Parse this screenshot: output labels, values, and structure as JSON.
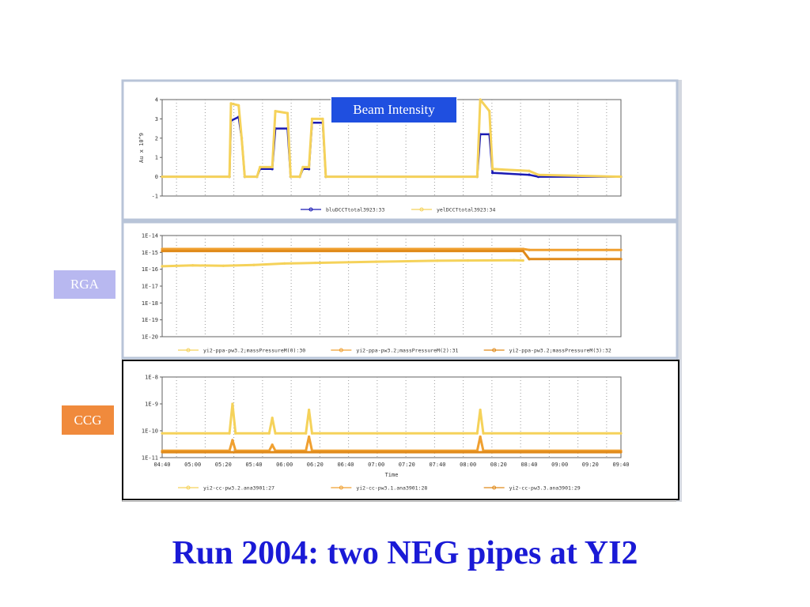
{
  "slide_title": "Run 2004: two NEG pipes at YI2",
  "callouts": {
    "beam": "Beam Intensity",
    "rga": "RGA",
    "ccg": "CCG"
  },
  "colors": {
    "blue_series": "#1a1ab4",
    "yellow_series": "#f5d25a",
    "orange_series": "#f0a030",
    "dark_orange_series": "#e08a1a",
    "title": "#1a1ad6"
  },
  "chart_data": [
    {
      "type": "line",
      "title": "",
      "ylabel": "Au x 10^9",
      "xlabel": "",
      "ylim": [
        -1,
        4
      ],
      "yticks": [
        "4",
        "3",
        "2",
        "1",
        "0",
        "-1"
      ],
      "x_range": [
        0,
        300
      ],
      "series": [
        {
          "name": "bluDCCTtotal3923:33",
          "color": "blue",
          "points": [
            [
              0,
              0
            ],
            [
              44,
              0
            ],
            [
              45,
              2.9
            ],
            [
              50,
              3.1
            ],
            [
              52,
              2.0
            ],
            [
              54,
              0
            ],
            [
              62,
              0
            ],
            [
              64,
              0.4
            ],
            [
              72,
              0.4
            ],
            [
              74,
              2.5
            ],
            [
              82,
              2.5
            ],
            [
              84,
              0
            ],
            [
              90,
              0
            ],
            [
              92,
              0.4
            ],
            [
              96,
              0.4
            ],
            [
              98,
              2.8
            ],
            [
              105,
              2.8
            ],
            [
              107,
              0
            ],
            [
              206,
              0
            ],
            [
              208,
              2.2
            ],
            [
              214,
              2.2
            ],
            [
              216,
              0.2
            ],
            [
              240,
              0.1
            ],
            [
              246,
              0
            ],
            [
              300,
              0
            ]
          ]
        },
        {
          "name": "yelDCCTtotal3923:34",
          "color": "yellow",
          "points": [
            [
              0,
              0
            ],
            [
              44,
              0
            ],
            [
              45,
              3.8
            ],
            [
              50,
              3.7
            ],
            [
              52,
              2.0
            ],
            [
              54,
              0
            ],
            [
              62,
              0
            ],
            [
              64,
              0.5
            ],
            [
              72,
              0.5
            ],
            [
              74,
              3.4
            ],
            [
              82,
              3.3
            ],
            [
              84,
              0
            ],
            [
              90,
              0
            ],
            [
              92,
              0.5
            ],
            [
              96,
              0.5
            ],
            [
              98,
              3.0
            ],
            [
              105,
              3.0
            ],
            [
              107,
              0
            ],
            [
              206,
              0
            ],
            [
              208,
              4.0
            ],
            [
              214,
              3.4
            ],
            [
              216,
              0.4
            ],
            [
              240,
              0.3
            ],
            [
              246,
              0.1
            ],
            [
              300,
              0
            ]
          ]
        }
      ]
    },
    {
      "type": "line",
      "title": "",
      "scale": "log",
      "ylim": [
        1e-20,
        1e-14
      ],
      "yticks": [
        "1E-14",
        "1E-15",
        "1E-16",
        "1E-17",
        "1E-18",
        "1E-19",
        "1E-20"
      ],
      "x_range": [
        0,
        300
      ],
      "series": [
        {
          "name": "yi2-ppa-pw3.2;massPressureM(0):30",
          "color": "yellow",
          "points": [
            [
              0,
              1.5e-16
            ],
            [
              20,
              1.7e-16
            ],
            [
              40,
              1.6e-16
            ],
            [
              60,
              1.8e-16
            ],
            [
              80,
              2.2e-16
            ],
            [
              100,
              2.4e-16
            ],
            [
              140,
              2.8e-16
            ],
            [
              180,
              3.2e-16
            ],
            [
              200,
              3.3e-16
            ],
            [
              230,
              3.4e-16
            ],
            [
              236,
              3.3e-16
            ]
          ]
        },
        {
          "name": "yi2-ppa-pw3.2;massPressureM(2):31",
          "color": "orange",
          "points": [
            [
              0,
              1.6e-15
            ],
            [
              236,
              1.6e-15
            ],
            [
              240,
              1.4e-15
            ],
            [
              300,
              1.4e-15
            ]
          ]
        },
        {
          "name": "yi2-ppa-pw3.2;massPressureM(3):32",
          "color": "dark-orange",
          "points": [
            [
              0,
              1.2e-15
            ],
            [
              236,
              1.2e-15
            ],
            [
              240,
              4e-16
            ],
            [
              300,
              4e-16
            ]
          ]
        }
      ]
    },
    {
      "type": "line",
      "title": "",
      "scale": "log",
      "xlabel": "Time",
      "ylim": [
        1e-11,
        1e-08
      ],
      "yticks": [
        "1E-8",
        "1E-9",
        "1E-10",
        "1E-11"
      ],
      "xticks": [
        "04:40",
        "05:00",
        "05:20",
        "05:40",
        "06:00",
        "06:20",
        "06:40",
        "07:00",
        "07:20",
        "07:40",
        "08:00",
        "08:20",
        "08:40",
        "09:00",
        "09:20",
        "09:40"
      ],
      "x_range": [
        0,
        300
      ],
      "series": [
        {
          "name": "yi2-cc-pw3.2.ana3901:27",
          "color": "yellow",
          "points": [
            [
              0,
              8e-11
            ],
            [
              44,
              8e-11
            ],
            [
              46,
              1e-09
            ],
            [
              48,
              8e-11
            ],
            [
              70,
              8e-11
            ],
            [
              72,
              3e-10
            ],
            [
              74,
              8e-11
            ],
            [
              94,
              8e-11
            ],
            [
              96,
              6e-10
            ],
            [
              98,
              8e-11
            ],
            [
              206,
              8e-11
            ],
            [
              208,
              6e-10
            ],
            [
              210,
              8e-11
            ],
            [
              300,
              8e-11
            ]
          ]
        },
        {
          "name": "yi2-cc-pw3.1.ana3901:28",
          "color": "orange",
          "points": [
            [
              0,
              1.8e-11
            ],
            [
              44,
              1.8e-11
            ],
            [
              46,
              4.5e-11
            ],
            [
              48,
              1.8e-11
            ],
            [
              70,
              1.8e-11
            ],
            [
              72,
              3e-11
            ],
            [
              74,
              1.8e-11
            ],
            [
              94,
              1.8e-11
            ],
            [
              96,
              6e-11
            ],
            [
              98,
              1.8e-11
            ],
            [
              206,
              1.8e-11
            ],
            [
              208,
              6e-11
            ],
            [
              210,
              1.8e-11
            ],
            [
              300,
              1.8e-11
            ]
          ]
        },
        {
          "name": "yi2-cc-pw3.3.ana3901:29",
          "color": "dark-orange",
          "points": [
            [
              0,
              1.6e-11
            ],
            [
              300,
              1.6e-11
            ]
          ]
        }
      ]
    }
  ]
}
